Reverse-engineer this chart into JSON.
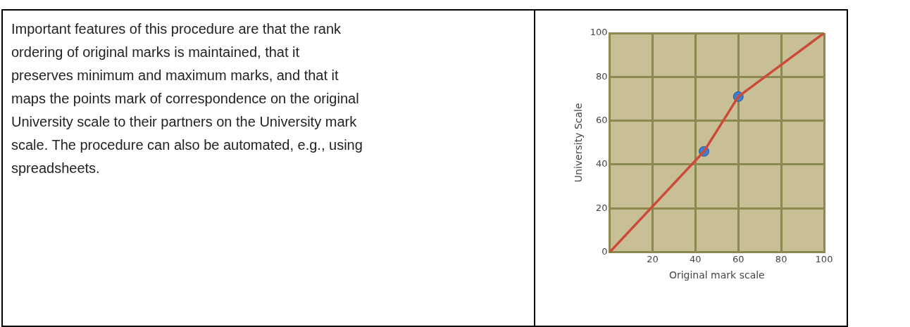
{
  "chart_data": {
    "type": "line",
    "xlabel": "Original mark scale",
    "ylabel": "University Scale",
    "annotations": [
      "Important features of this procedure are that the rank ordering of original marks is maintained, that it preserves minimum and maximum marks, and that it maps the points mark of correspondence on the original University scale to their partners on the University mark scale. The procedure can also be automated, e.g., using spreadsheets."
    ],
    "series": [
      {
        "color": "#cc4a3a",
        "x": [
          0,
          44,
          60,
          100
        ],
        "values": [
          0,
          46,
          71,
          100
        ],
        "marker": "none"
      },
      {
        "type": "scatter",
        "color": "#3f7bd0",
        "x": [
          44,
          60
        ],
        "values": [
          46,
          71
        ],
        "marker": "circle"
      }
    ],
    "xlim": [
      0,
      100
    ],
    "ylim": [
      0,
      100
    ],
    "xticks": [
      {
        "value": 0,
        "label": null
      },
      20,
      40,
      60,
      80,
      100
    ],
    "yticks": [
      0,
      20,
      40,
      60,
      80,
      100
    ],
    "grid": true,
    "legend": false
  }
}
